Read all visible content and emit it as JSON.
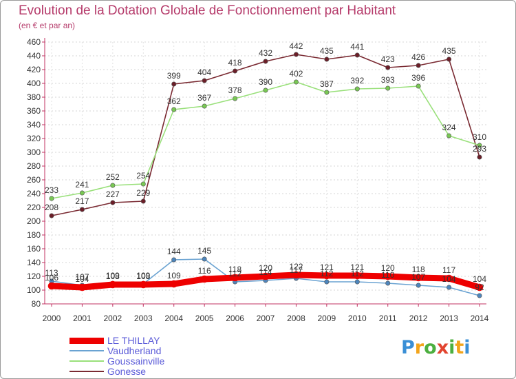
{
  "title": "Evolution de la Dotation Globale de Fonctionnement par Habitant",
  "subtitle": "(en € et par an)",
  "logo": {
    "text": "Proxiti",
    "letter_colors": [
      "#3a8fd6",
      "#f2a41b",
      "#4caf3f",
      "#e2442f",
      "#4caf3f",
      "#f2a41b",
      "#3a8fd6"
    ]
  },
  "chart_data": {
    "type": "line",
    "title": "Evolution de la Dotation Globale de Fonctionnement par Habitant",
    "ylabel": "(en € et par an)",
    "xlabel": "",
    "ylim": [
      80,
      460
    ],
    "ytick_step": 20,
    "grid": true,
    "legend_position": "bottom-left",
    "categories": [
      "2000",
      "2001",
      "2002",
      "2003",
      "2004",
      "2005",
      "2006",
      "2007",
      "2008",
      "2009",
      "2010",
      "2011",
      "2012",
      "2013",
      "2014"
    ],
    "series": [
      {
        "name": "LE THILLAY",
        "color": "#ee0000",
        "marker_color": "#ee0000",
        "width": 9,
        "values": [
          106,
          104,
          108,
          108,
          109,
          116,
          118,
          120,
          122,
          121,
          121,
          120,
          118,
          117,
          104
        ],
        "labels": [
          "106",
          "104",
          "108",
          "108",
          "109",
          "116",
          "118",
          "120",
          "122",
          "121",
          "121",
          "120",
          "118",
          "117",
          "104"
        ]
      },
      {
        "name": "Vaudherland",
        "color": "#6aa3d2",
        "marker_color": "#4d86bd",
        "width": 1.6,
        "values": [
          113,
          107,
          109,
          109,
          144,
          145,
          112,
          114,
          117,
          112,
          112,
          110,
          107,
          104,
          92
        ],
        "labels": [
          "113",
          "107",
          "109",
          "109",
          "144",
          "145",
          "112",
          "114",
          "117",
          "112",
          "112",
          "110",
          "107",
          "104",
          "92"
        ]
      },
      {
        "name": "Goussainville",
        "color": "#99e07a",
        "marker_color": "#79c854",
        "width": 1.6,
        "values": [
          233,
          241,
          252,
          254,
          362,
          367,
          378,
          390,
          402,
          387,
          392,
          393,
          396,
          324,
          310
        ],
        "labels": [
          "233",
          "241",
          "252",
          "254",
          "362",
          "367",
          "378",
          "390",
          "402",
          "387",
          "392",
          "393",
          "396",
          "324",
          "310"
        ]
      },
      {
        "name": "Gonesse",
        "color": "#7a2a32",
        "marker_color": "#6b1e28",
        "width": 1.6,
        "values": [
          208,
          217,
          227,
          229,
          399,
          404,
          418,
          432,
          442,
          435,
          441,
          423,
          426,
          435,
          293
        ],
        "labels": [
          "208",
          "217",
          "227",
          "229",
          "399",
          "404",
          "418",
          "432",
          "442",
          "435",
          "441",
          "423",
          "426",
          "435",
          "293"
        ]
      }
    ]
  }
}
